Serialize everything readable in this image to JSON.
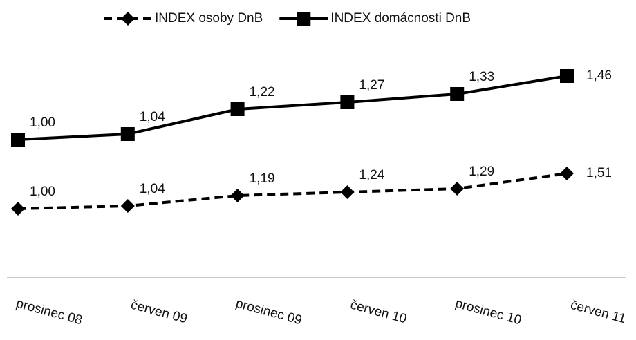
{
  "chart_data": {
    "type": "line",
    "categories": [
      "prosinec 08",
      "červen 09",
      "prosinec 09",
      "červen 10",
      "prosinec 10",
      "červen 11"
    ],
    "series": [
      {
        "name": "INDEX osoby DnB",
        "color": "#000000",
        "linestyle": "dashed",
        "marker": "diamond",
        "axis": "y2",
        "values": [
          1.0,
          1.04,
          1.19,
          1.24,
          1.29,
          1.51
        ],
        "value_labels": [
          "1,00",
          "1,04",
          "1,19",
          "1,24",
          "1,29",
          "1,51"
        ]
      },
      {
        "name": "INDEX domácnosti DnB",
        "color": "#000000",
        "linestyle": "solid",
        "marker": "square",
        "values": [
          1.0,
          1.04,
          1.22,
          1.27,
          1.33,
          1.46
        ],
        "value_labels": [
          "1,00",
          "1,04",
          "1,22",
          "1,27",
          "1,33",
          "1,46"
        ]
      }
    ],
    "ylim": [
      0,
      1.6
    ],
    "y2lim": [
      0,
      3.2
    ],
    "grid": false,
    "legend": "top"
  }
}
